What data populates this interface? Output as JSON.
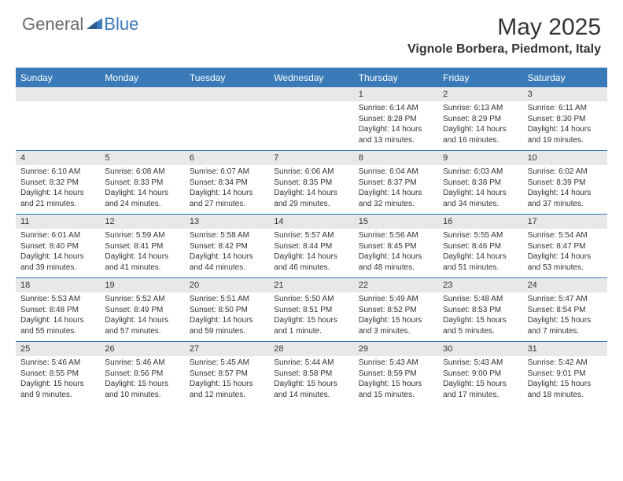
{
  "brand": {
    "left": "General",
    "right": "Blue"
  },
  "title": "May 2025",
  "location": "Vignole Borbera, Piedmont, Italy",
  "colors": {
    "header_bar": "#3a7ab8",
    "daynum_bg": "#e8e8e8",
    "text": "#333333",
    "logo_gray": "#6b6b6b",
    "logo_blue": "#3a7ab8",
    "white": "#ffffff"
  },
  "weekdays": [
    "Sunday",
    "Monday",
    "Tuesday",
    "Wednesday",
    "Thursday",
    "Friday",
    "Saturday"
  ],
  "weeks": [
    [
      {
        "num": "",
        "text": ""
      },
      {
        "num": "",
        "text": ""
      },
      {
        "num": "",
        "text": ""
      },
      {
        "num": "",
        "text": ""
      },
      {
        "num": "1",
        "text": "Sunrise: 6:14 AM\nSunset: 8:28 PM\nDaylight: 14 hours and 13 minutes."
      },
      {
        "num": "2",
        "text": "Sunrise: 6:13 AM\nSunset: 8:29 PM\nDaylight: 14 hours and 16 minutes."
      },
      {
        "num": "3",
        "text": "Sunrise: 6:11 AM\nSunset: 8:30 PM\nDaylight: 14 hours and 19 minutes."
      }
    ],
    [
      {
        "num": "4",
        "text": "Sunrise: 6:10 AM\nSunset: 8:32 PM\nDaylight: 14 hours and 21 minutes."
      },
      {
        "num": "5",
        "text": "Sunrise: 6:08 AM\nSunset: 8:33 PM\nDaylight: 14 hours and 24 minutes."
      },
      {
        "num": "6",
        "text": "Sunrise: 6:07 AM\nSunset: 8:34 PM\nDaylight: 14 hours and 27 minutes."
      },
      {
        "num": "7",
        "text": "Sunrise: 6:06 AM\nSunset: 8:35 PM\nDaylight: 14 hours and 29 minutes."
      },
      {
        "num": "8",
        "text": "Sunrise: 6:04 AM\nSunset: 8:37 PM\nDaylight: 14 hours and 32 minutes."
      },
      {
        "num": "9",
        "text": "Sunrise: 6:03 AM\nSunset: 8:38 PM\nDaylight: 14 hours and 34 minutes."
      },
      {
        "num": "10",
        "text": "Sunrise: 6:02 AM\nSunset: 8:39 PM\nDaylight: 14 hours and 37 minutes."
      }
    ],
    [
      {
        "num": "11",
        "text": "Sunrise: 6:01 AM\nSunset: 8:40 PM\nDaylight: 14 hours and 39 minutes."
      },
      {
        "num": "12",
        "text": "Sunrise: 5:59 AM\nSunset: 8:41 PM\nDaylight: 14 hours and 41 minutes."
      },
      {
        "num": "13",
        "text": "Sunrise: 5:58 AM\nSunset: 8:42 PM\nDaylight: 14 hours and 44 minutes."
      },
      {
        "num": "14",
        "text": "Sunrise: 5:57 AM\nSunset: 8:44 PM\nDaylight: 14 hours and 46 minutes."
      },
      {
        "num": "15",
        "text": "Sunrise: 5:56 AM\nSunset: 8:45 PM\nDaylight: 14 hours and 48 minutes."
      },
      {
        "num": "16",
        "text": "Sunrise: 5:55 AM\nSunset: 8:46 PM\nDaylight: 14 hours and 51 minutes."
      },
      {
        "num": "17",
        "text": "Sunrise: 5:54 AM\nSunset: 8:47 PM\nDaylight: 14 hours and 53 minutes."
      }
    ],
    [
      {
        "num": "18",
        "text": "Sunrise: 5:53 AM\nSunset: 8:48 PM\nDaylight: 14 hours and 55 minutes."
      },
      {
        "num": "19",
        "text": "Sunrise: 5:52 AM\nSunset: 8:49 PM\nDaylight: 14 hours and 57 minutes."
      },
      {
        "num": "20",
        "text": "Sunrise: 5:51 AM\nSunset: 8:50 PM\nDaylight: 14 hours and 59 minutes."
      },
      {
        "num": "21",
        "text": "Sunrise: 5:50 AM\nSunset: 8:51 PM\nDaylight: 15 hours and 1 minute."
      },
      {
        "num": "22",
        "text": "Sunrise: 5:49 AM\nSunset: 8:52 PM\nDaylight: 15 hours and 3 minutes."
      },
      {
        "num": "23",
        "text": "Sunrise: 5:48 AM\nSunset: 8:53 PM\nDaylight: 15 hours and 5 minutes."
      },
      {
        "num": "24",
        "text": "Sunrise: 5:47 AM\nSunset: 8:54 PM\nDaylight: 15 hours and 7 minutes."
      }
    ],
    [
      {
        "num": "25",
        "text": "Sunrise: 5:46 AM\nSunset: 8:55 PM\nDaylight: 15 hours and 9 minutes."
      },
      {
        "num": "26",
        "text": "Sunrise: 5:46 AM\nSunset: 8:56 PM\nDaylight: 15 hours and 10 minutes."
      },
      {
        "num": "27",
        "text": "Sunrise: 5:45 AM\nSunset: 8:57 PM\nDaylight: 15 hours and 12 minutes."
      },
      {
        "num": "28",
        "text": "Sunrise: 5:44 AM\nSunset: 8:58 PM\nDaylight: 15 hours and 14 minutes."
      },
      {
        "num": "29",
        "text": "Sunrise: 5:43 AM\nSunset: 8:59 PM\nDaylight: 15 hours and 15 minutes."
      },
      {
        "num": "30",
        "text": "Sunrise: 5:43 AM\nSunset: 9:00 PM\nDaylight: 15 hours and 17 minutes."
      },
      {
        "num": "31",
        "text": "Sunrise: 5:42 AM\nSunset: 9:01 PM\nDaylight: 15 hours and 18 minutes."
      }
    ]
  ]
}
